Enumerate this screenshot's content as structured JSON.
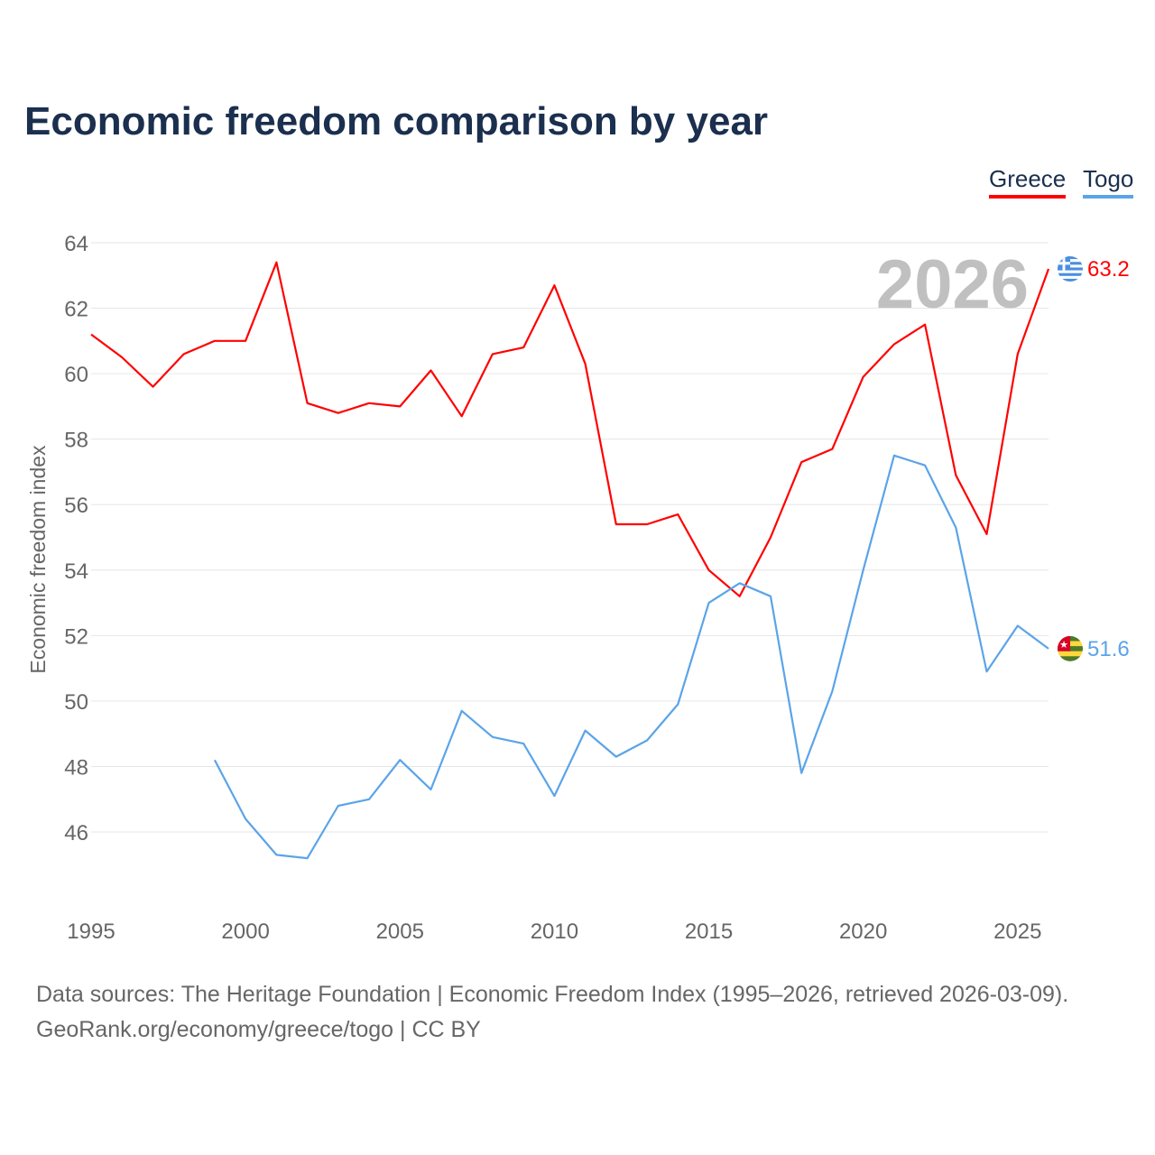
{
  "chart_data": {
    "type": "line",
    "title": "Economic freedom comparison by year",
    "xlabel": "",
    "ylabel": "Economic freedom index",
    "xlim": [
      1995,
      2026
    ],
    "ylim": [
      44,
      64
    ],
    "x_ticks": [
      1995,
      2000,
      2005,
      2010,
      2015,
      2020,
      2025
    ],
    "y_ticks": [
      46,
      48,
      50,
      52,
      54,
      56,
      58,
      60,
      62,
      64
    ],
    "grid": true,
    "legend_position": "top-right",
    "year_watermark": "2026",
    "series": [
      {
        "name": "Greece",
        "color": "#ff0000",
        "end_label": "63.2",
        "x": [
          1995,
          1996,
          1997,
          1998,
          1999,
          2000,
          2001,
          2002,
          2003,
          2004,
          2005,
          2006,
          2007,
          2008,
          2009,
          2010,
          2011,
          2012,
          2013,
          2014,
          2015,
          2016,
          2017,
          2018,
          2019,
          2020,
          2021,
          2022,
          2023,
          2024,
          2025,
          2026
        ],
        "values": [
          61.2,
          60.5,
          59.6,
          60.6,
          61.0,
          61.0,
          63.4,
          59.1,
          58.8,
          59.1,
          59.0,
          60.1,
          58.7,
          60.6,
          60.8,
          62.7,
          60.3,
          55.4,
          55.4,
          55.7,
          54.0,
          53.2,
          55.0,
          57.3,
          57.7,
          59.9,
          60.9,
          61.5,
          56.9,
          55.1,
          60.6,
          63.2
        ]
      },
      {
        "name": "Togo",
        "color": "#5ba4e8",
        "end_label": "51.6",
        "x": [
          1999,
          2000,
          2001,
          2002,
          2003,
          2004,
          2005,
          2006,
          2007,
          2008,
          2009,
          2010,
          2011,
          2012,
          2013,
          2014,
          2015,
          2016,
          2017,
          2018,
          2019,
          2020,
          2021,
          2022,
          2023,
          2024,
          2025,
          2026
        ],
        "values": [
          48.2,
          46.4,
          45.3,
          45.2,
          46.8,
          47.0,
          48.2,
          47.3,
          49.7,
          48.9,
          48.7,
          47.1,
          49.1,
          48.3,
          48.8,
          49.9,
          53.0,
          53.6,
          53.2,
          47.8,
          50.3,
          54.0,
          57.5,
          57.2,
          55.3,
          50.9,
          52.3,
          51.6
        ]
      }
    ]
  },
  "footer": {
    "line1": "Data sources: The Heritage Foundation | Economic Freedom Index (1995–2026, retrieved 2026-03-09).",
    "line2": "GeoRank.org/economy/greece/togo | CC BY"
  }
}
